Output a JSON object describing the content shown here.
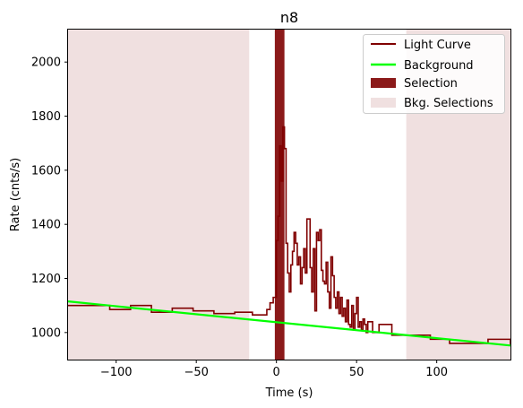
{
  "chart_data": {
    "type": "line",
    "title": "n8",
    "xlabel": "Time (s)",
    "ylabel": "Rate (cnts/s)",
    "xlim": [
      -130,
      146
    ],
    "ylim": [
      900,
      2120
    ],
    "xticks": [
      -100,
      -50,
      0,
      50,
      100
    ],
    "xtick_labels": [
      "−100",
      "−50",
      "0",
      "50",
      "100"
    ],
    "yticks": [
      1000,
      1200,
      1400,
      1600,
      1800,
      2000
    ],
    "ytick_labels": [
      "1000",
      "1200",
      "1400",
      "1600",
      "1800",
      "2000"
    ],
    "grid": false,
    "legend_position": "top-right",
    "colors": {
      "light_curve": "#800000",
      "background": "#00ff00",
      "selection": "#8b1a1a",
      "bkg_selection": "#f0e0e0"
    },
    "series": [
      {
        "name": "Light Curve",
        "kind": "step",
        "x": [
          -130,
          -117,
          -104,
          -91,
          -78,
          -65,
          -52,
          -39,
          -26,
          -15,
          -6,
          -4,
          -2,
          0,
          1,
          2,
          3,
          4,
          5,
          6,
          7,
          8,
          9,
          10,
          11,
          12,
          13,
          14,
          15,
          16,
          17,
          18,
          19,
          20,
          21,
          22,
          23,
          24,
          25,
          26,
          27,
          28,
          29,
          30,
          31,
          32,
          33,
          34,
          35,
          36,
          37,
          38,
          39,
          40,
          41,
          42,
          43,
          44,
          45,
          46,
          47,
          48,
          49,
          50,
          51,
          52,
          53,
          54,
          55,
          56,
          57,
          58,
          60,
          64,
          72,
          84,
          96,
          108,
          120,
          132,
          146
        ],
        "y": [
          1100,
          1100,
          1085,
          1100,
          1075,
          1090,
          1080,
          1070,
          1075,
          1065,
          1085,
          1110,
          1130,
          1340,
          1430,
          1690,
          1560,
          1760,
          1680,
          1330,
          1220,
          1150,
          1250,
          1300,
          1370,
          1330,
          1250,
          1280,
          1180,
          1240,
          1310,
          1220,
          1420,
          1420,
          1240,
          1150,
          1310,
          1080,
          1370,
          1340,
          1380,
          1230,
          1190,
          1180,
          1260,
          1150,
          1090,
          1280,
          1210,
          1130,
          1090,
          1150,
          1070,
          1130,
          1060,
          1090,
          1040,
          1120,
          1030,
          1020,
          1100,
          1010,
          1070,
          1130,
          1020,
          1040,
          1010,
          1050,
          1030,
          1000,
          1040,
          1040,
          1000,
          1030,
          990,
          990,
          975,
          960,
          960,
          975,
          955
        ]
      },
      {
        "name": "Background",
        "kind": "line",
        "x": [
          -130,
          146
        ],
        "y": [
          1115,
          952
        ]
      },
      {
        "name": "Selection",
        "kind": "span",
        "from": -1,
        "to": 5
      },
      {
        "name": "Bkg. Selections",
        "kind": "spans",
        "ranges": [
          [
            -130,
            -17
          ],
          [
            81,
            146
          ]
        ]
      }
    ]
  }
}
